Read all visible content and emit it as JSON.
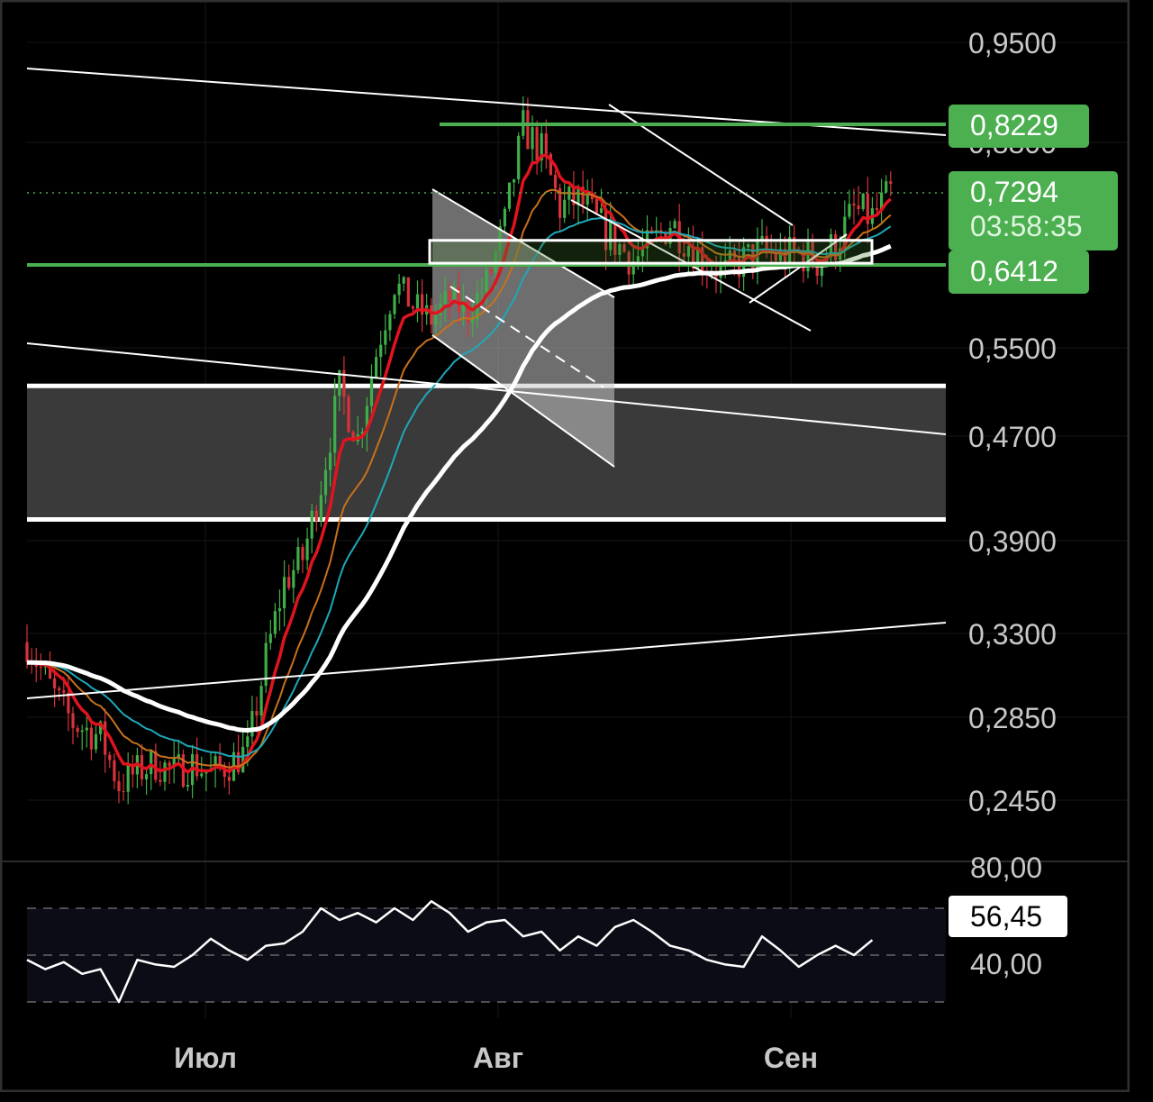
{
  "chart_data": [
    {
      "type": "candlestick",
      "title": "",
      "x_tick_labels": [
        "Июл",
        "Авг",
        "Сен"
      ],
      "y_tick_labels": [
        "0,9500",
        "0,8800",
        "0,5500",
        "0,4700",
        "0,3900",
        "0,3300",
        "0,2850",
        "0,2450"
      ],
      "y_scale": "log",
      "grid": true,
      "price_labels": {
        "resistance": "0,8229",
        "last_price": "0,7294",
        "countdown": "03:58:35",
        "support": "0,6412"
      },
      "key_levels": {
        "resistance": 0.8229,
        "last_price": 0.7294,
        "support": 0.6412,
        "zone_top": 0.514,
        "zone_bottom": 0.405,
        "range_box_top": 0.678,
        "range_box_bottom": 0.643
      },
      "price_path": {
        "x_days": [
          0,
          3,
          5,
          8,
          10,
          12,
          14,
          16,
          18,
          20,
          22,
          24,
          26,
          28,
          30,
          32,
          34,
          36,
          38,
          40,
          42,
          44,
          46,
          48,
          50,
          52,
          54,
          56,
          58,
          60,
          62,
          64,
          66,
          68,
          70,
          72,
          74,
          76,
          78,
          80,
          82,
          84,
          86,
          88,
          90,
          92,
          94
        ],
        "close": [
          0.325,
          0.296,
          0.282,
          0.275,
          0.252,
          0.258,
          0.262,
          0.258,
          0.262,
          0.257,
          0.262,
          0.268,
          0.316,
          0.362,
          0.378,
          0.432,
          0.512,
          0.468,
          0.545,
          0.625,
          0.598,
          0.582,
          0.605,
          0.59,
          0.625,
          0.692,
          0.818,
          0.785,
          0.712,
          0.722,
          0.695,
          0.672,
          0.652,
          0.668,
          0.695,
          0.672,
          0.648,
          0.638,
          0.652,
          0.662,
          0.655,
          0.66,
          0.65,
          0.67,
          0.708,
          0.7,
          0.729
        ]
      },
      "series": [
        {
          "name": "",
          "color": "#e0141e",
          "style": "fast moving average"
        },
        {
          "name": "",
          "color": "#c8711c",
          "style": "moving average"
        },
        {
          "name": "",
          "color": "#1fa8b8",
          "style": "moving average"
        },
        {
          "name": "",
          "color": "#ffffff",
          "style": "slow moving average"
        }
      ]
    },
    {
      "type": "line",
      "title": "",
      "y_tick_labels": [
        "80,00",
        "40,00"
      ],
      "current_value_label": "56,45",
      "ylim": [
        20,
        80
      ],
      "band": [
        30,
        70
      ],
      "x_days": [
        0,
        2,
        4,
        6,
        8,
        10,
        12,
        14,
        16,
        18,
        20,
        22,
        24,
        26,
        28,
        30,
        32,
        34,
        36,
        38,
        40,
        42,
        44,
        46,
        48,
        50,
        52,
        54,
        56,
        58,
        60,
        62,
        64,
        66,
        68,
        70,
        72,
        74,
        76,
        78,
        80,
        82,
        84,
        86,
        88,
        90,
        92
      ],
      "values": [
        48,
        44,
        47,
        42,
        44,
        30,
        48,
        46,
        45,
        50,
        57,
        52,
        48,
        54,
        55,
        60,
        70,
        65,
        68,
        64,
        70,
        65,
        73,
        68,
        60,
        64,
        65,
        58,
        60,
        52,
        58,
        54,
        62,
        65,
        60,
        54,
        52,
        48,
        46,
        45,
        58,
        52,
        45,
        50,
        54,
        50,
        56.45
      ]
    }
  ]
}
